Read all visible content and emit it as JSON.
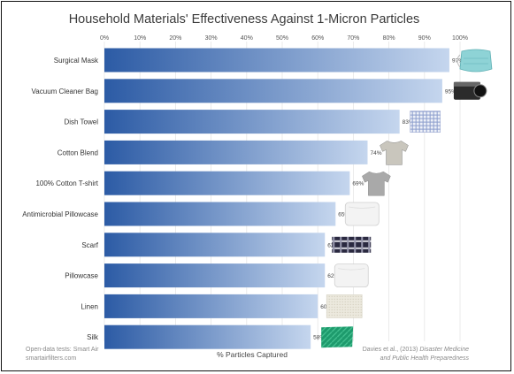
{
  "chart_data": {
    "type": "bar",
    "orientation": "horizontal",
    "title": "Household Materials' Effectiveness Against 1-Micron Particles",
    "xlabel": "% Particles Captured",
    "xlim": [
      0,
      100
    ],
    "x_ticks": [
      "0%",
      "10%",
      "20%",
      "30%",
      "40%",
      "50%",
      "60%",
      "70%",
      "80%",
      "90%",
      "100%"
    ],
    "grid": "vertical",
    "categories": [
      "Surgical Mask",
      "Vacuum Cleaner Bag",
      "Dish Towel",
      "Cotton Blend",
      "100% Cotton T-shirt",
      "Antimicrobial Pillowcase",
      "Scarf",
      "Pillowcase",
      "Linen",
      "Silk"
    ],
    "values": [
      97,
      95,
      83,
      74,
      69,
      65,
      62,
      62,
      60,
      58
    ],
    "value_labels": [
      "97%",
      "95%",
      "83%",
      "74%",
      "69%",
      "65%",
      "62%",
      "62%",
      "60%",
      "58%"
    ],
    "bar_gradient": [
      "#2c5ba5",
      "#c5d6ee"
    ],
    "icons": [
      "surgical-mask-icon",
      "vacuum-cleaner-bag-icon",
      "dish-towel-icon",
      "cotton-blend-shirt-icon",
      "cotton-tshirt-icon",
      "pillowcase-icon",
      "plaid-scarf-icon",
      "pillowcase-icon",
      "linen-swatch-icon",
      "silk-swatch-icon"
    ]
  },
  "footer": {
    "left_line1": "Open-data tests: Smart Air",
    "left_line2": "smartairfilters.com",
    "right_line1_plain": "Davies et al., (2013)",
    "right_line1_italic": "Disaster Medicine",
    "right_line2": "and Public Health Preparedness"
  }
}
